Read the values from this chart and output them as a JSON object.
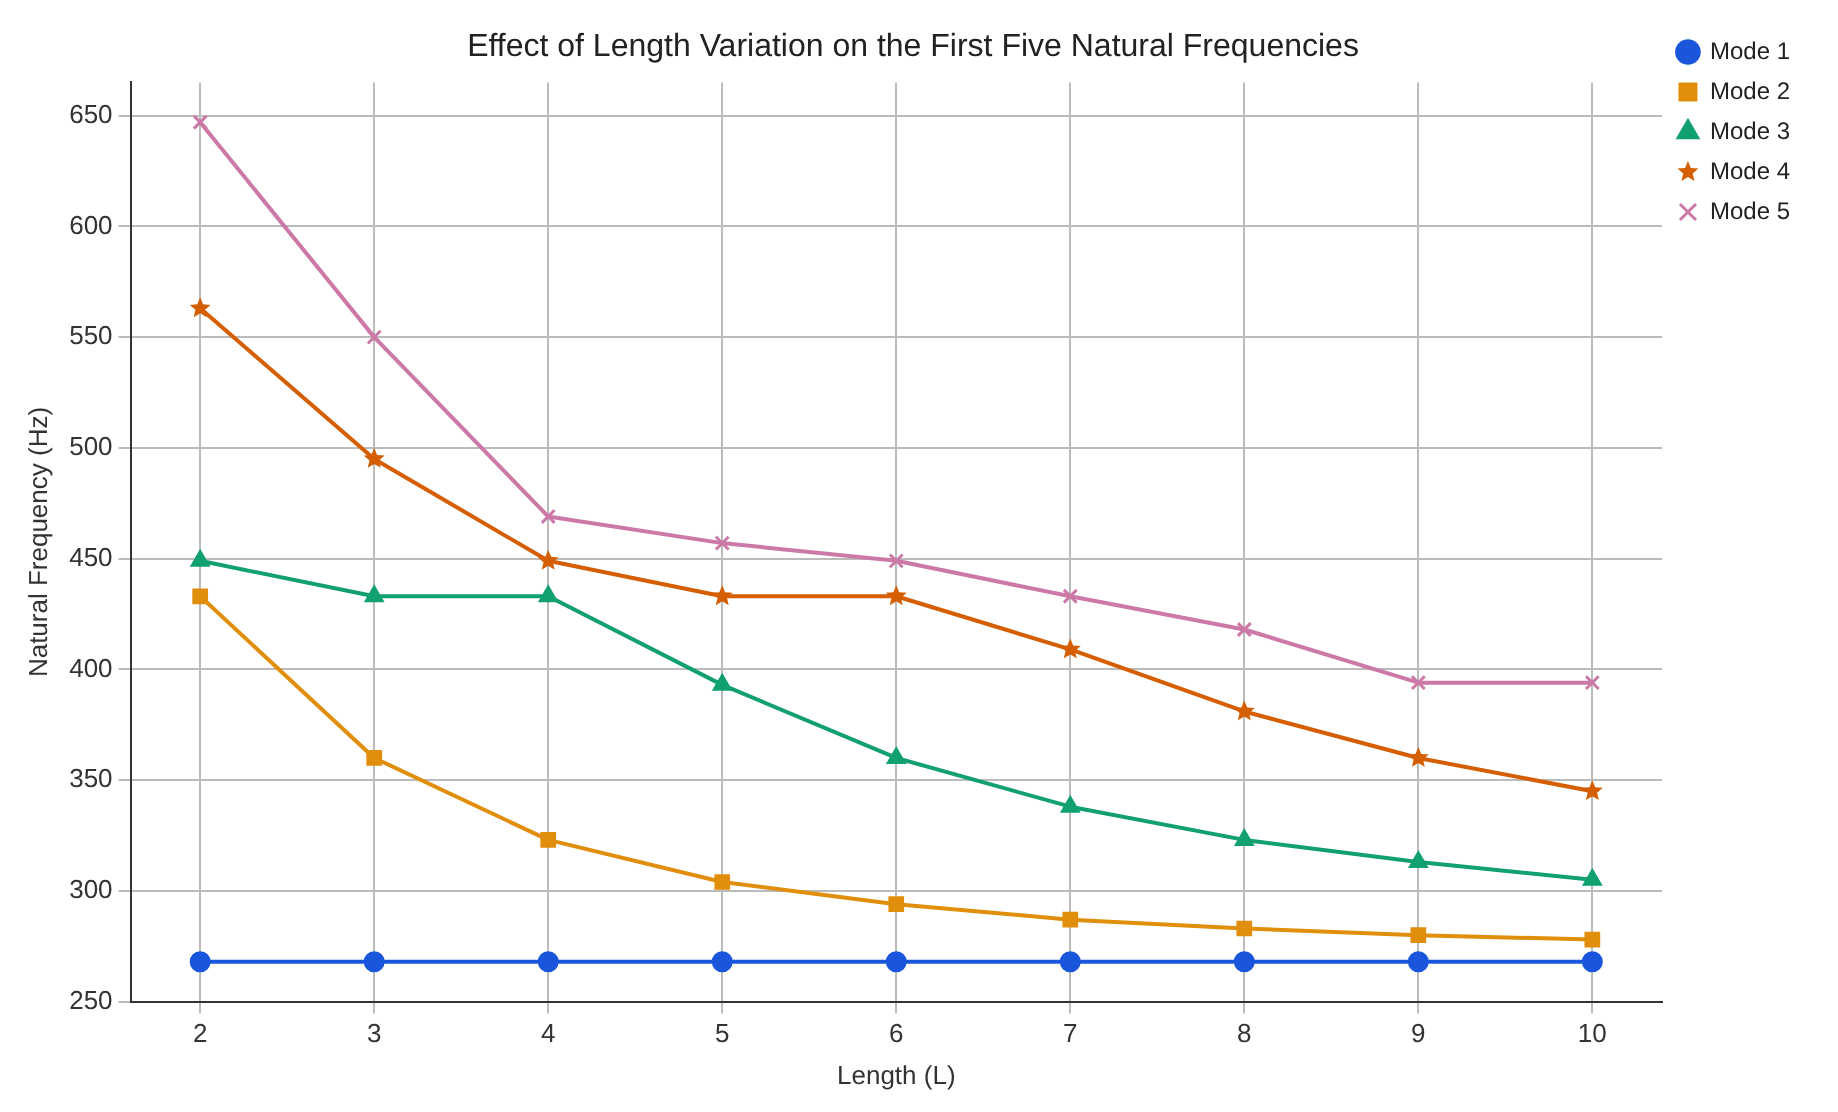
{
  "chart_data": {
    "type": "line",
    "title": "Effect of Length Variation on the First Five Natural Frequencies",
    "xlabel": "Length (L)",
    "ylabel": "Natural Frequency (Hz)",
    "x": [
      2,
      3,
      4,
      5,
      6,
      7,
      8,
      9,
      10
    ],
    "series": [
      {
        "name": "Mode 1",
        "color": "#1a56db",
        "marker": "circle",
        "values": [
          268,
          268,
          268,
          268,
          268,
          268,
          268,
          268,
          268
        ]
      },
      {
        "name": "Mode 2",
        "color": "#e08e0b",
        "marker": "square",
        "values": [
          433,
          360,
          323,
          304,
          294,
          287,
          283,
          280,
          278
        ]
      },
      {
        "name": "Mode 3",
        "color": "#12a070",
        "marker": "triangle",
        "values": [
          449,
          433,
          433,
          393,
          360,
          338,
          323,
          313,
          305
        ]
      },
      {
        "name": "Mode 4",
        "color": "#d55e00",
        "marker": "star",
        "values": [
          563,
          495,
          449,
          433,
          433,
          409,
          381,
          360,
          345
        ]
      },
      {
        "name": "Mode 5",
        "color": "#cc79a7",
        "marker": "cross",
        "values": [
          647,
          550,
          469,
          457,
          449,
          433,
          418,
          394,
          394
        ]
      }
    ],
    "xlim": [
      1.6,
      10.4
    ],
    "xticks": [
      2,
      3,
      4,
      5,
      6,
      7,
      8,
      9,
      10
    ],
    "ylim": [
      250,
      665
    ],
    "yticks": [
      250,
      300,
      350,
      400,
      450,
      500,
      550,
      600,
      650
    ],
    "grid": true,
    "legend": "top right",
    "line_style": "solid"
  }
}
